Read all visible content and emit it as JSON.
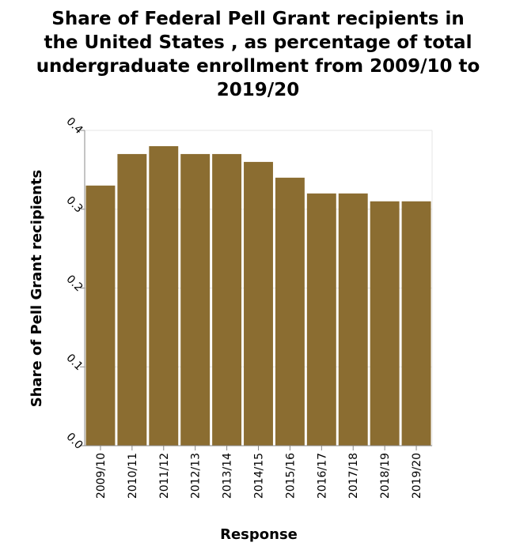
{
  "chart_data": {
    "type": "bar",
    "title": "Share of Federal Pell Grant recipients in the United States , as percentage of total undergraduate enrollment from 2009/10 to 2019/20",
    "title_lines": [
      "Share of Federal Pell Grant recipients in",
      "the United States , as percentage of total",
      "undergraduate enrollment from 2009/10 to",
      "2019/20"
    ],
    "xlabel": "Response",
    "ylabel": "Share of Pell Grant recipients",
    "categories": [
      "2009/10",
      "2010/11",
      "2011/12",
      "2012/13",
      "2013/14",
      "2014/15",
      "2015/16",
      "2016/17",
      "2017/18",
      "2018/19",
      "2019/20"
    ],
    "values": [
      0.33,
      0.37,
      0.38,
      0.37,
      0.37,
      0.36,
      0.34,
      0.32,
      0.32,
      0.31,
      0.31
    ],
    "ylim": [
      0,
      0.4
    ],
    "yticks": [
      "0.0",
      "0.1",
      "0.2",
      "0.3",
      "0.4"
    ],
    "grid": true,
    "bar_color": "#8b6d31"
  }
}
